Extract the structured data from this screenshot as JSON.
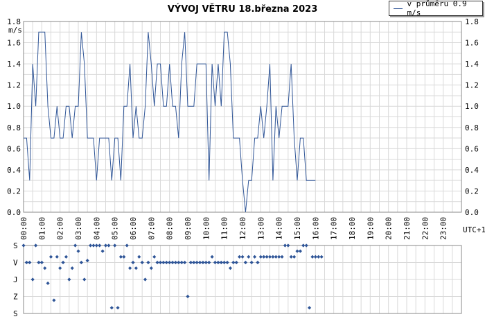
{
  "chart_data": [
    {
      "type": "line",
      "title": "VÝVOJ VĚTRU  18.března 2023",
      "ylabel": "m/s",
      "ylim": [
        0,
        1.8
      ],
      "yticks": [
        "0.0",
        "0.2",
        "0.4",
        "0.6",
        "0.8",
        "1.0",
        "1.2",
        "1.4",
        "1.6",
        "1.8"
      ],
      "x_labels": [
        "00:00",
        "01:00",
        "02:00",
        "03:00",
        "04:00",
        "05:00",
        "06:00",
        "07:00",
        "08:00",
        "09:00",
        "10:00",
        "11:00",
        "12:00",
        "13:00",
        "14:00",
        "15:00",
        "16:00",
        "17:00",
        "18:00",
        "19:00",
        "20:00",
        "21:00",
        "22:00",
        "23:00"
      ],
      "x_unit": "UTC+1",
      "grid": true,
      "color": "#2f5597",
      "legend": {
        "position": "top-right",
        "label": "v průměru 0.9 m/s"
      },
      "interval_minutes": 10,
      "values": [
        0.7,
        0.7,
        0.3,
        1.4,
        1.0,
        1.7,
        1.7,
        1.7,
        1.0,
        0.7,
        0.7,
        1.0,
        0.7,
        0.7,
        1.0,
        1.0,
        0.7,
        1.0,
        1.0,
        1.7,
        1.4,
        0.7,
        0.7,
        0.7,
        0.3,
        0.7,
        0.7,
        0.7,
        0.7,
        0.3,
        0.7,
        0.7,
        0.3,
        1.0,
        1.0,
        1.4,
        0.7,
        1.0,
        0.7,
        0.7,
        1.0,
        1.7,
        1.4,
        1.0,
        1.4,
        1.4,
        1.0,
        1.0,
        1.4,
        1.0,
        1.0,
        0.7,
        1.4,
        1.7,
        1.0,
        1.0,
        1.0,
        1.4,
        1.4,
        1.4,
        1.4,
        0.3,
        1.4,
        1.0,
        1.4,
        1.0,
        1.7,
        1.7,
        1.4,
        0.7,
        0.7,
        0.7,
        0.3,
        0.0,
        0.3,
        0.3,
        0.7,
        0.7,
        1.0,
        0.7,
        1.0,
        1.4,
        0.3,
        1.0,
        0.7,
        1.0,
        1.0,
        1.0,
        1.4,
        0.7,
        0.3,
        0.7,
        0.7,
        0.3,
        0.3,
        0.3,
        0.3
      ]
    },
    {
      "type": "scatter",
      "ylabels": [
        "S",
        "V",
        "J",
        "Z",
        "S"
      ],
      "color": "#2f5597",
      "interval_minutes": 10,
      "directions": [
        [
          0,
          0
        ],
        [
          1,
          90
        ],
        [
          2,
          90
        ],
        [
          3,
          180
        ],
        [
          4,
          0
        ],
        [
          5,
          90
        ],
        [
          6,
          90
        ],
        [
          7,
          120
        ],
        [
          8,
          200
        ],
        [
          9,
          60
        ],
        [
          10,
          290
        ],
        [
          11,
          60
        ],
        [
          12,
          120
        ],
        [
          13,
          90
        ],
        [
          14,
          60
        ],
        [
          15,
          180
        ],
        [
          16,
          120
        ],
        [
          17,
          0
        ],
        [
          18,
          30
        ],
        [
          19,
          90
        ],
        [
          20,
          180
        ],
        [
          21,
          80
        ],
        [
          22,
          0
        ],
        [
          23,
          0
        ],
        [
          24,
          0
        ],
        [
          25,
          0
        ],
        [
          26,
          30
        ],
        [
          27,
          0
        ],
        [
          28,
          0
        ],
        [
          29,
          330
        ],
        [
          30,
          0
        ],
        [
          31,
          330
        ],
        [
          32,
          60
        ],
        [
          33,
          60
        ],
        [
          34,
          0
        ],
        [
          35,
          120
        ],
        [
          36,
          90
        ],
        [
          37,
          120
        ],
        [
          38,
          60
        ],
        [
          39,
          90
        ],
        [
          40,
          180
        ],
        [
          41,
          90
        ],
        [
          42,
          120
        ],
        [
          43,
          60
        ],
        [
          44,
          90
        ],
        [
          45,
          90
        ],
        [
          46,
          90
        ],
        [
          47,
          90
        ],
        [
          48,
          90
        ],
        [
          49,
          90
        ],
        [
          50,
          90
        ],
        [
          51,
          90
        ],
        [
          52,
          90
        ],
        [
          53,
          90
        ],
        [
          54,
          270
        ],
        [
          55,
          90
        ],
        [
          56,
          90
        ],
        [
          57,
          90
        ],
        [
          58,
          90
        ],
        [
          59,
          90
        ],
        [
          60,
          90
        ],
        [
          61,
          90
        ],
        [
          62,
          60
        ],
        [
          63,
          90
        ],
        [
          64,
          90
        ],
        [
          65,
          90
        ],
        [
          66,
          90
        ],
        [
          67,
          90
        ],
        [
          68,
          120
        ],
        [
          69,
          90
        ],
        [
          70,
          90
        ],
        [
          71,
          60
        ],
        [
          72,
          60
        ],
        [
          73,
          90
        ],
        [
          74,
          60
        ],
        [
          75,
          90
        ],
        [
          76,
          60
        ],
        [
          77,
          90
        ],
        [
          78,
          60
        ],
        [
          79,
          60
        ],
        [
          80,
          60
        ],
        [
          81,
          60
        ],
        [
          82,
          60
        ],
        [
          83,
          60
        ],
        [
          84,
          60
        ],
        [
          85,
          60
        ],
        [
          86,
          0
        ],
        [
          87,
          0
        ],
        [
          88,
          60
        ],
        [
          89,
          60
        ],
        [
          90,
          30
        ],
        [
          91,
          30
        ],
        [
          92,
          0
        ],
        [
          93,
          0
        ],
        [
          94,
          330
        ],
        [
          95,
          60
        ],
        [
          96,
          60
        ],
        [
          97,
          60
        ],
        [
          98,
          60
        ]
      ]
    }
  ]
}
